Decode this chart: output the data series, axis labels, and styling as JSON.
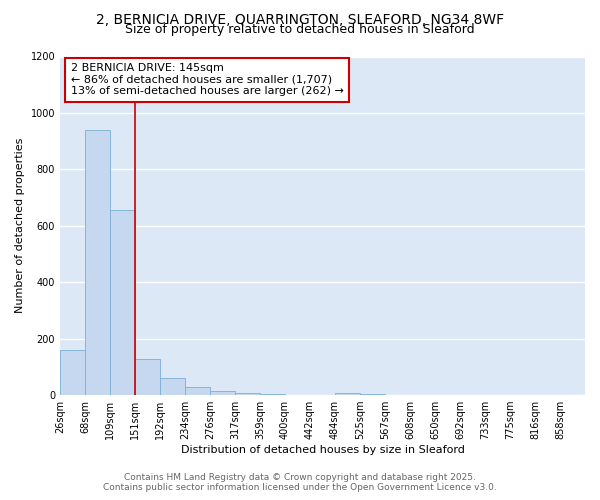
{
  "title_line1": "2, BERNICIA DRIVE, QUARRINGTON, SLEAFORD, NG34 8WF",
  "title_line2": "Size of property relative to detached houses in Sleaford",
  "xlabel": "Distribution of detached houses by size in Sleaford",
  "ylabel": "Number of detached properties",
  "categories": [
    "26sqm",
    "68sqm",
    "109sqm",
    "151sqm",
    "192sqm",
    "234sqm",
    "276sqm",
    "317sqm",
    "359sqm",
    "400sqm",
    "442sqm",
    "484sqm",
    "525sqm",
    "567sqm",
    "608sqm",
    "650sqm",
    "692sqm",
    "733sqm",
    "775sqm",
    "816sqm",
    "858sqm"
  ],
  "values": [
    160,
    940,
    655,
    128,
    60,
    30,
    15,
    8,
    3,
    0,
    0,
    8,
    3,
    0,
    0,
    0,
    0,
    0,
    0,
    0,
    0
  ],
  "bar_color": "#c5d8f0",
  "bar_edge_color": "#7bafd4",
  "red_line_x": 3.0,
  "annotation_text": "2 BERNICIA DRIVE: 145sqm\n← 86% of detached houses are smaller (1,707)\n13% of semi-detached houses are larger (262) →",
  "annotation_box_color": "#ffffff",
  "annotation_box_edge": "#cc0000",
  "red_line_color": "#cc0000",
  "ylim": [
    0,
    1200
  ],
  "yticks": [
    0,
    200,
    400,
    600,
    800,
    1000,
    1200
  ],
  "footer1": "Contains HM Land Registry data © Crown copyright and database right 2025.",
  "footer2": "Contains public sector information licensed under the Open Government Licence v3.0.",
  "bg_color": "#ffffff",
  "plot_bg_color": "#dce8f5",
  "grid_color": "#ffffff",
  "title_fontsize": 10,
  "subtitle_fontsize": 9,
  "annot_fontsize": 8,
  "axis_fontsize": 8,
  "tick_fontsize": 7,
  "footer_fontsize": 6.5
}
